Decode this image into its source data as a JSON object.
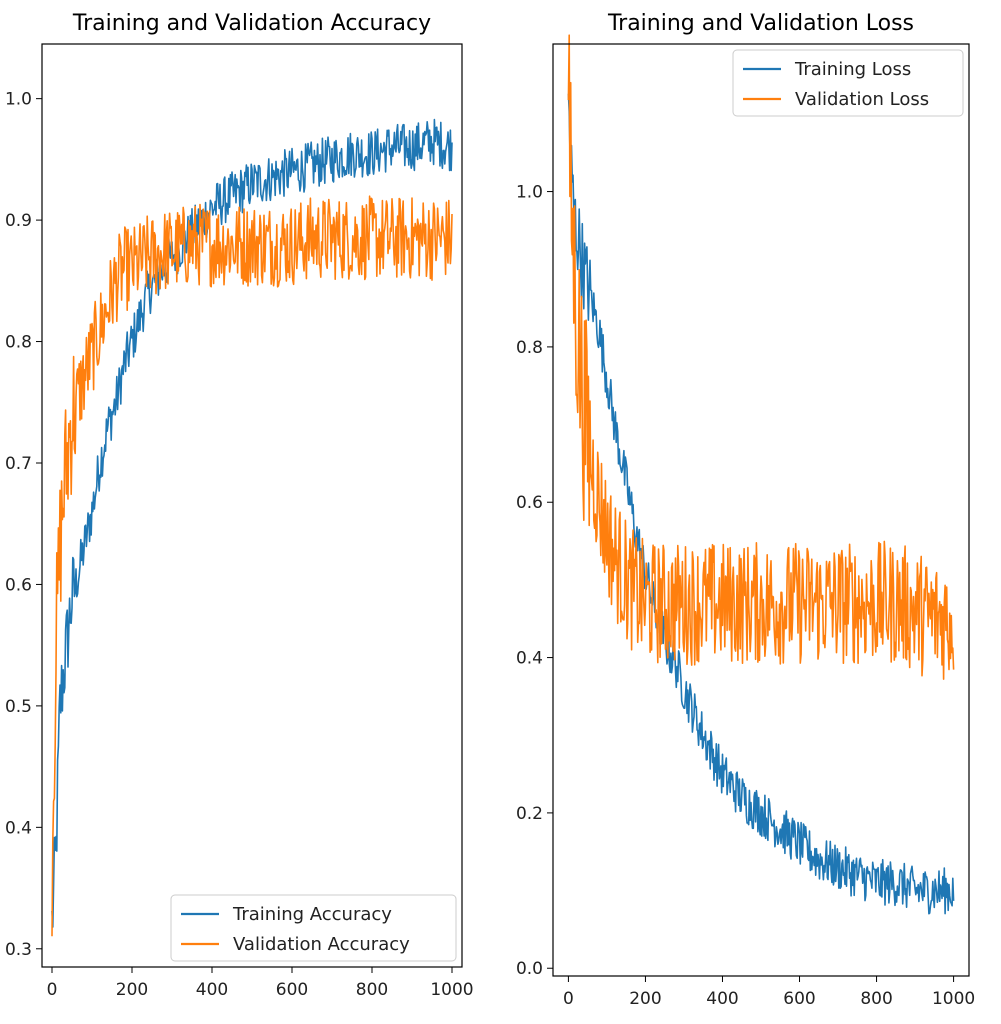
{
  "chart_data": [
    {
      "type": "line",
      "title": "Training and Validation Accuracy",
      "xlabel": "",
      "ylabel": "",
      "xlim": [
        -25,
        1025
      ],
      "ylim": [
        0.285,
        1.045
      ],
      "x_ticks": [
        0,
        200,
        400,
        600,
        800,
        1000
      ],
      "y_ticks": [
        0.3,
        0.4,
        0.5,
        0.6,
        0.7,
        0.8,
        0.9,
        1.0
      ],
      "x_tick_labels": [
        "0",
        "200",
        "400",
        "600",
        "800",
        "1000"
      ],
      "y_tick_labels": [
        "0.3",
        "0.4",
        "0.5",
        "0.6",
        "0.7",
        "0.8",
        "0.9",
        "1.0"
      ],
      "legend_position": "lower-right",
      "grid": false,
      "x": [
        0,
        10,
        20,
        30,
        40,
        50,
        60,
        80,
        100,
        120,
        140,
        160,
        180,
        200,
        220,
        240,
        260,
        280,
        300,
        350,
        400,
        450,
        500,
        550,
        600,
        650,
        700,
        750,
        800,
        850,
        900,
        950,
        1000
      ],
      "series": [
        {
          "name": "Training Accuracy",
          "color": "#1f77b4",
          "values": [
            0.32,
            0.38,
            0.5,
            0.53,
            0.56,
            0.59,
            0.6,
            0.63,
            0.66,
            0.7,
            0.73,
            0.75,
            0.78,
            0.8,
            0.82,
            0.84,
            0.85,
            0.86,
            0.87,
            0.89,
            0.91,
            0.92,
            0.93,
            0.935,
            0.94,
            0.945,
            0.95,
            0.955,
            0.955,
            0.96,
            0.96,
            0.965,
            0.96
          ],
          "noise": 0.02
        },
        {
          "name": "Validation Accuracy",
          "color": "#ff7f0e",
          "values": [
            0.37,
            0.55,
            0.63,
            0.68,
            0.71,
            0.74,
            0.75,
            0.77,
            0.79,
            0.81,
            0.83,
            0.85,
            0.86,
            0.86,
            0.865,
            0.87,
            0.87,
            0.875,
            0.875,
            0.88,
            0.88,
            0.88,
            0.88,
            0.88,
            0.88,
            0.885,
            0.885,
            0.885,
            0.885,
            0.885,
            0.885,
            0.885,
            0.885
          ],
          "noise": 0.035
        }
      ]
    },
    {
      "type": "line",
      "title": "Training and Validation Loss",
      "xlabel": "",
      "ylabel": "",
      "xlim": [
        -40,
        1040
      ],
      "ylim": [
        -0.01,
        1.19
      ],
      "x_ticks": [
        0,
        200,
        400,
        600,
        800,
        1000
      ],
      "y_ticks": [
        0.0,
        0.2,
        0.4,
        0.6,
        0.8,
        1.0
      ],
      "x_tick_labels": [
        "0",
        "200",
        "400",
        "600",
        "800",
        "1000"
      ],
      "y_tick_labels": [
        "0.0",
        "0.2",
        "0.4",
        "0.6",
        "0.8",
        "1.0"
      ],
      "legend_position": "upper-right",
      "grid": false,
      "x": [
        0,
        10,
        20,
        30,
        40,
        50,
        60,
        80,
        100,
        120,
        140,
        160,
        180,
        200,
        220,
        240,
        260,
        280,
        300,
        350,
        400,
        450,
        500,
        550,
        600,
        650,
        700,
        750,
        800,
        850,
        900,
        950,
        1000
      ],
      "series": [
        {
          "name": "Training Loss",
          "color": "#1f77b4",
          "values": [
            1.12,
            1.0,
            0.95,
            0.93,
            0.9,
            0.88,
            0.86,
            0.82,
            0.76,
            0.7,
            0.65,
            0.6,
            0.55,
            0.51,
            0.47,
            0.44,
            0.41,
            0.39,
            0.36,
            0.3,
            0.25,
            0.22,
            0.2,
            0.18,
            0.16,
            0.14,
            0.13,
            0.12,
            0.11,
            0.11,
            0.1,
            0.1,
            0.1
          ],
          "noise": 0.03
        },
        {
          "name": "Validation Loss",
          "color": "#ff7f0e",
          "values": [
            1.1,
            0.95,
            0.85,
            0.78,
            0.72,
            0.68,
            0.65,
            0.6,
            0.56,
            0.53,
            0.51,
            0.49,
            0.48,
            0.47,
            0.47,
            0.47,
            0.47,
            0.47,
            0.47,
            0.47,
            0.47,
            0.47,
            0.47,
            0.47,
            0.47,
            0.47,
            0.47,
            0.47,
            0.47,
            0.47,
            0.46,
            0.45,
            0.45
          ],
          "noise": 0.08
        }
      ]
    }
  ]
}
